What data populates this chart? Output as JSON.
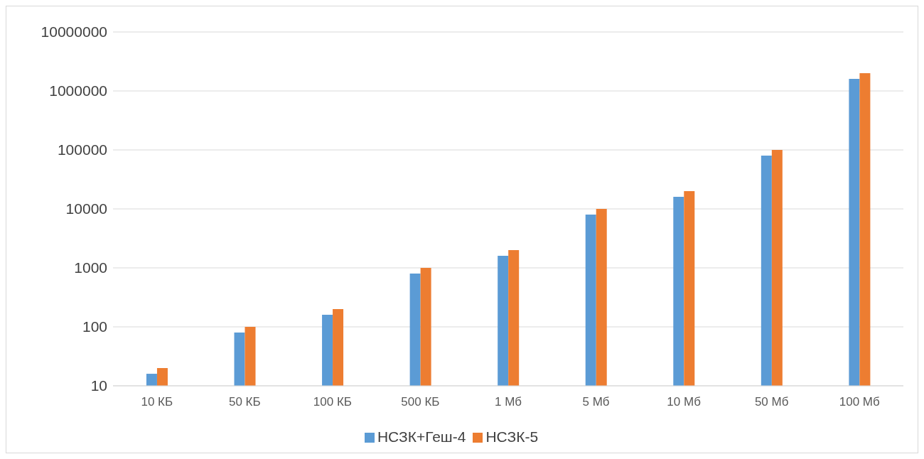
{
  "chart_data": {
    "type": "bar",
    "categories": [
      "10 КБ",
      "50 КБ",
      "100 КБ",
      "500 КБ",
      "1 Мб",
      "5 Мб",
      "10 Мб",
      "50 Мб",
      "100 Мб"
    ],
    "series": [
      {
        "name": "НСЗК+Геш-4",
        "color": "#5b9bd5",
        "values": [
          16,
          80,
          160,
          800,
          1600,
          8000,
          16000,
          80000,
          1600000
        ]
      },
      {
        "name": "НСЗК-5",
        "color": "#ed7d31",
        "values": [
          20,
          100,
          200,
          1000,
          2000,
          10000,
          20000,
          100000,
          2000000
        ]
      }
    ],
    "log": true,
    "ylim": [
      10,
      10000000
    ],
    "yticks": [
      10,
      100,
      1000,
      10000,
      100000,
      1000000,
      10000000
    ],
    "grid": "y",
    "legend": "bottom"
  }
}
